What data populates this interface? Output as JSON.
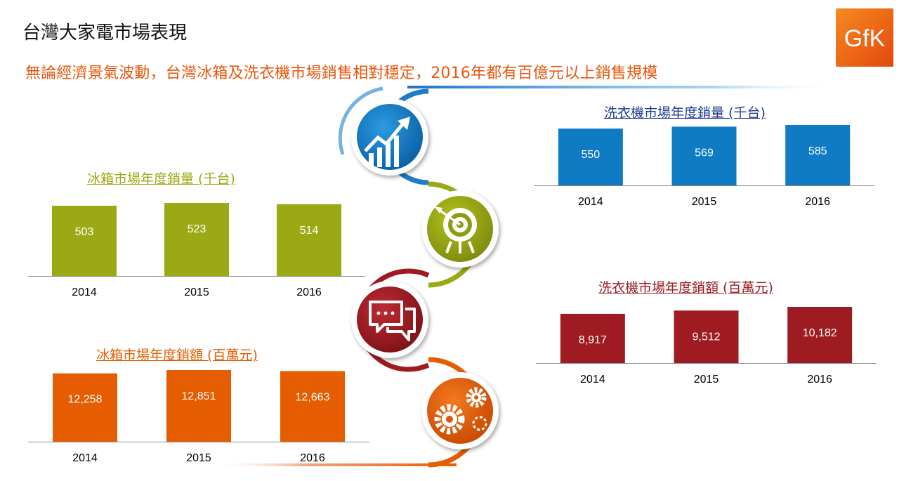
{
  "page": {
    "title": "台灣大家電市場表現",
    "subtitle": "無論經濟景氣波動，台灣冰箱及洗衣機市場銷售相對穩定，2016年都有百億元以上銷售規模",
    "logo_text": "GfK"
  },
  "colors": {
    "orange": "#E65C00",
    "green": "#9BAA14",
    "blue": "#0E7BC4",
    "red": "#9E1B22"
  },
  "icons": [
    "growth-chart-icon",
    "target-icon",
    "chat-bubbles-icon",
    "gears-icon"
  ],
  "chart_data": [
    {
      "id": "fridge-units",
      "type": "bar",
      "title": "冰箱市場年度銷量 (千台)",
      "categories": [
        "2014",
        "2015",
        "2016"
      ],
      "values": [
        503,
        523,
        514
      ],
      "labels": [
        "503",
        "523",
        "514"
      ],
      "color": "#9BAA14"
    },
    {
      "id": "fridge-revenue",
      "type": "bar",
      "title": "冰箱市場年度銷額 (百萬元)",
      "categories": [
        "2014",
        "2015",
        "2016"
      ],
      "values": [
        12258,
        12851,
        12663
      ],
      "labels": [
        "12,258",
        "12,851",
        "12,663"
      ],
      "color": "#E65C00"
    },
    {
      "id": "washer-units",
      "type": "bar",
      "title": "洗衣機市場年度銷量 (千台)",
      "categories": [
        "2014",
        "2015",
        "2016"
      ],
      "values": [
        550,
        569,
        585
      ],
      "labels": [
        "550",
        "569",
        "585"
      ],
      "color": "#0E7BC4"
    },
    {
      "id": "washer-revenue",
      "type": "bar",
      "title": "洗衣機市場年度銷額 (百萬元)",
      "categories": [
        "2014",
        "2015",
        "2016"
      ],
      "values": [
        8917,
        9512,
        10182
      ],
      "labels": [
        "8,917",
        "9,512",
        "10,182"
      ],
      "color": "#9E1B22"
    }
  ]
}
